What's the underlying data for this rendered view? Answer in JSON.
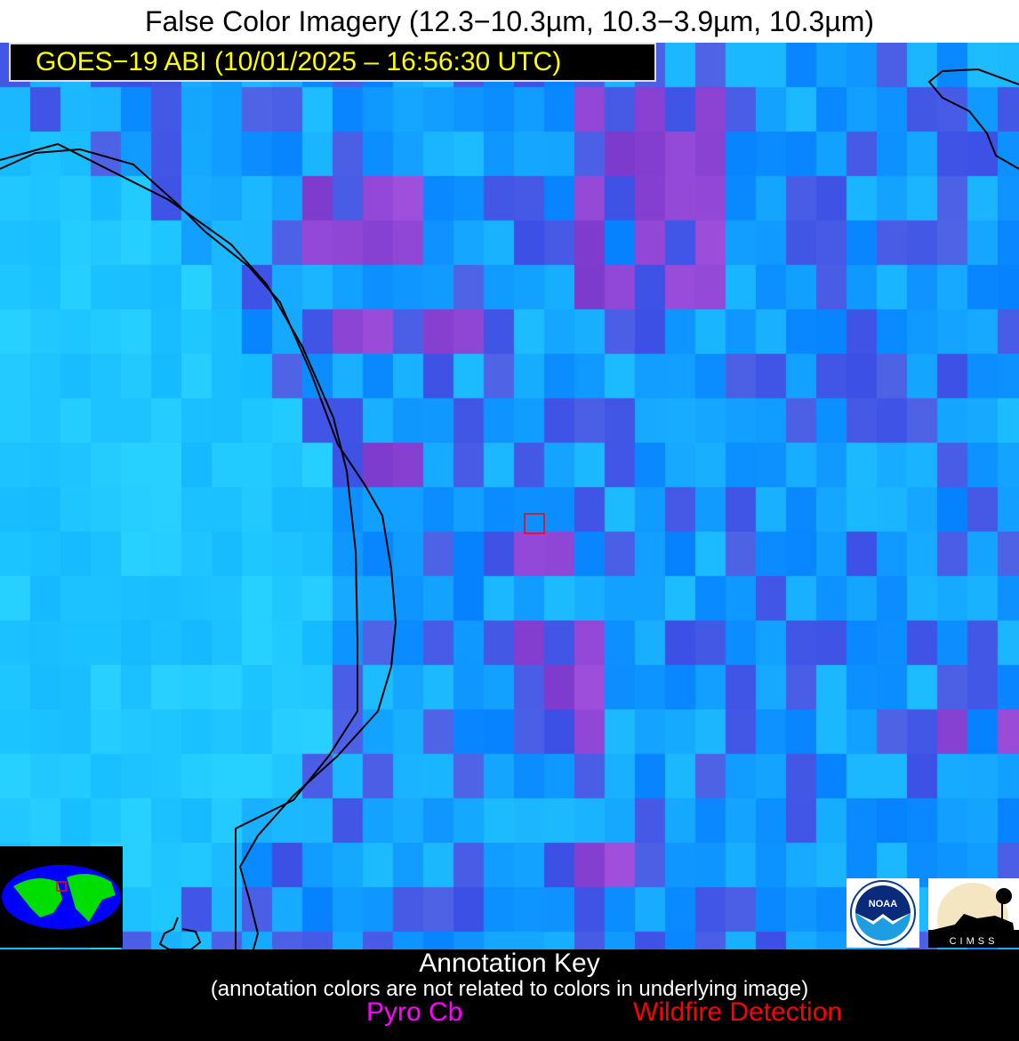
{
  "header": {
    "title": "False Color Imagery (12.3−10.3µm, 10.3−3.9µm, 10.3µm)",
    "subtitle": "GOES−19 ABI (10/01/2025 – 16:56:30 UTC)"
  },
  "logos": {
    "noaa": "NOAA",
    "cimss": "CIMSS"
  },
  "annotation_key": {
    "title": "Annotation Key",
    "note": "(annotation colors are not related to colors in underlying image)",
    "items": [
      {
        "label": "Pyro Cb",
        "color": "#ff00ff"
      },
      {
        "label": "Wildfire Detection",
        "color": "#ff0000"
      }
    ]
  },
  "colors": {
    "land_cyan": "#22c4ff",
    "ocean_blue": "#0a7cff",
    "cloud_purple": "#8a44d0",
    "subtitle_text": "#ffff00",
    "coastline": "#000000",
    "detection_box": "#ff0000"
  }
}
